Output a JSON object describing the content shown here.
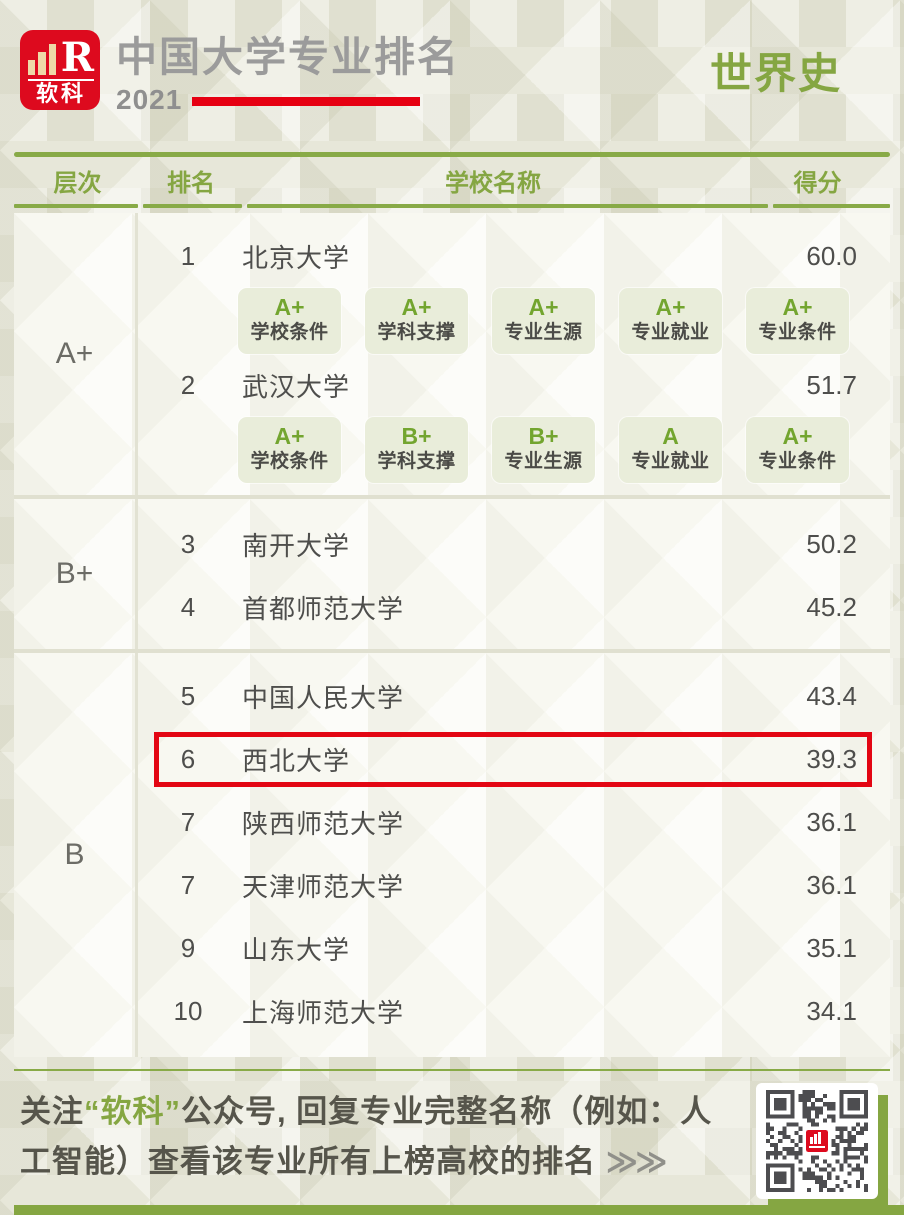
{
  "header": {
    "logo_brand": "软科",
    "logo_mark": "R",
    "title": "中国大学专业排名",
    "year": "2021",
    "subject": "世界史"
  },
  "table": {
    "columns": [
      "层次",
      "排名",
      "学校名称",
      "得分"
    ],
    "sections": [
      {
        "tier": "A+",
        "rows": [
          {
            "rank": "1",
            "school": "北京大学",
            "score": "60.0",
            "badges": [
              {
                "grade": "A+",
                "label": "学校条件"
              },
              {
                "grade": "A+",
                "label": "学科支撑"
              },
              {
                "grade": "A+",
                "label": "专业生源"
              },
              {
                "grade": "A+",
                "label": "专业就业"
              },
              {
                "grade": "A+",
                "label": "专业条件"
              }
            ]
          },
          {
            "rank": "2",
            "school": "武汉大学",
            "score": "51.7",
            "badges": [
              {
                "grade": "A+",
                "label": "学校条件"
              },
              {
                "grade": "B+",
                "label": "学科支撑"
              },
              {
                "grade": "B+",
                "label": "专业生源"
              },
              {
                "grade": "A",
                "label": "专业就业"
              },
              {
                "grade": "A+",
                "label": "专业条件"
              }
            ]
          }
        ]
      },
      {
        "tier": "B+",
        "rows": [
          {
            "rank": "3",
            "school": "南开大学",
            "score": "50.2"
          },
          {
            "rank": "4",
            "school": "首都师范大学",
            "score": "45.2"
          }
        ]
      },
      {
        "tier": "B",
        "rows": [
          {
            "rank": "5",
            "school": "中国人民大学",
            "score": "43.4"
          },
          {
            "rank": "6",
            "school": "西北大学",
            "score": "39.3",
            "highlighted": true
          },
          {
            "rank": "7",
            "school": "陕西师范大学",
            "score": "36.1"
          },
          {
            "rank": "7",
            "school": "天津师范大学",
            "score": "36.1"
          },
          {
            "rank": "9",
            "school": "山东大学",
            "score": "35.1"
          },
          {
            "rank": "10",
            "school": "上海师范大学",
            "score": "34.1"
          }
        ]
      }
    ]
  },
  "footer": {
    "prefix": "关注",
    "brand": "“软科”",
    "body": "公众号, 回复专业完整名称（例如：人工智能）查看该专业所有上榜高校的排名 ",
    "arrows": "≫≫"
  },
  "colors": {
    "accent_green": "#88aa47",
    "brand_red": "#e60012",
    "highlight_red": "#e30613",
    "badge_bg": "#e9edda",
    "page_bg": "#e7e7d9",
    "card_bg": "#f8f8f1"
  },
  "chart_data": {
    "type": "table",
    "title": "2021 中国大学专业排名 — 世界史",
    "columns": [
      "层次",
      "排名",
      "学校名称",
      "得分"
    ],
    "rows": [
      [
        "A+",
        "1",
        "北京大学",
        "60.0"
      ],
      [
        "A+",
        "2",
        "武汉大学",
        "51.7"
      ],
      [
        "B+",
        "3",
        "南开大学",
        "50.2"
      ],
      [
        "B+",
        "4",
        "首都师范大学",
        "45.2"
      ],
      [
        "B",
        "5",
        "中国人民大学",
        "43.4"
      ],
      [
        "B",
        "6",
        "西北大学",
        "39.3"
      ],
      [
        "B",
        "7",
        "陕西师范大学",
        "36.1"
      ],
      [
        "B",
        "7",
        "天津师范大学",
        "36.1"
      ],
      [
        "B",
        "9",
        "山东大学",
        "35.1"
      ],
      [
        "B",
        "10",
        "上海师范大学",
        "34.1"
      ]
    ]
  }
}
